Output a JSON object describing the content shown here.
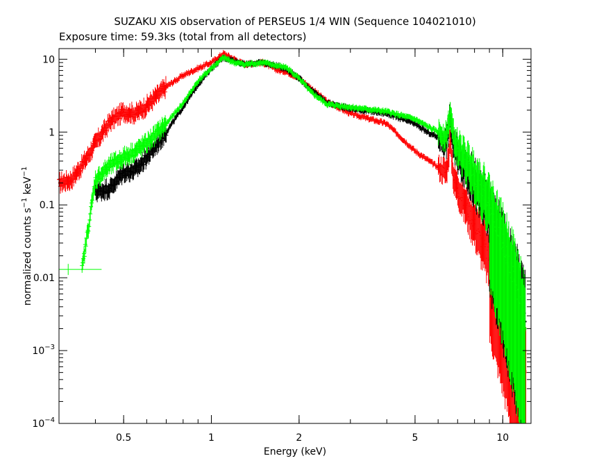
{
  "chart_data": {
    "type": "scatter",
    "title": "SUZAKU XIS observation of PERSEUS 1/4 WIN (Sequence 104021010)",
    "subtitle": "Exposure time: 59.3ks (total from all detectors)",
    "xlabel": "Energy (keV)",
    "ylabel": {
      "prefix": "normalized counts s",
      "exp1": "−1",
      "mid": " keV",
      "exp2": "−1"
    },
    "x_scale": "log",
    "y_scale": "log",
    "xlim": [
      0.3,
      12.5
    ],
    "ylim": [
      0.0001,
      14
    ],
    "x_ticks": [
      {
        "value": 0.5,
        "label": "0.5"
      },
      {
        "value": 1,
        "label": "1"
      },
      {
        "value": 2,
        "label": "2"
      },
      {
        "value": 5,
        "label": "5"
      },
      {
        "value": 10,
        "label": "10"
      }
    ],
    "y_ticks": [
      {
        "value": 10,
        "label": "10"
      },
      {
        "value": 1,
        "label": "1"
      },
      {
        "value": 0.1,
        "label": "0.1"
      },
      {
        "value": 0.01,
        "label": "0.01"
      },
      {
        "value": 0.001,
        "label": "10",
        "exp": "−3"
      },
      {
        "value": 0.0001,
        "label": "10",
        "exp": "−4"
      }
    ],
    "grid": false,
    "series": [
      {
        "color": "#ff0000",
        "x": [
          0.3,
          0.33,
          0.36,
          0.4,
          0.45,
          0.5,
          0.55,
          0.6,
          0.7,
          0.8,
          0.9,
          1.0,
          1.1,
          1.2,
          1.3,
          1.5,
          1.7,
          1.8,
          2.0,
          2.2,
          2.5,
          3.0,
          4.0,
          5.0,
          5.5,
          6.0,
          6.4,
          6.6,
          6.8,
          7.0,
          8.0,
          9.0,
          10.0,
          11.0,
          12.0
        ],
        "y": [
          0.2,
          0.22,
          0.35,
          0.7,
          1.4,
          1.9,
          1.8,
          2.3,
          4.2,
          6.0,
          7.5,
          9.0,
          12.0,
          10.0,
          8.5,
          9.0,
          7.0,
          6.8,
          5.5,
          4.0,
          2.6,
          1.8,
          1.3,
          0.55,
          0.42,
          0.33,
          0.28,
          0.75,
          0.22,
          0.17,
          0.055,
          0.018,
          0.006,
          0.002,
          0.0005
        ]
      },
      {
        "color": "#000000",
        "x": [
          0.4,
          0.45,
          0.5,
          0.55,
          0.6,
          0.7,
          0.8,
          0.9,
          1.0,
          1.1,
          1.2,
          1.3,
          1.5,
          1.7,
          1.8,
          2.0,
          2.2,
          2.5,
          3.0,
          4.0,
          5.0,
          5.5,
          6.0,
          6.4,
          6.6,
          6.8,
          7.0,
          8.0,
          9.0,
          10.0,
          11.0,
          12.0
        ],
        "y": [
          0.15,
          0.17,
          0.28,
          0.3,
          0.45,
          1.0,
          2.2,
          4.5,
          7.5,
          10.5,
          9.5,
          8.5,
          9.0,
          8.0,
          7.5,
          5.5,
          3.8,
          2.5,
          2.1,
          1.8,
          1.3,
          1.0,
          0.85,
          0.7,
          1.6,
          0.6,
          0.5,
          0.2,
          0.08,
          0.025,
          0.008,
          0.0025
        ]
      },
      {
        "color": "#00ff00",
        "x": [
          0.36,
          0.4,
          0.45,
          0.5,
          0.55,
          0.6,
          0.7,
          0.8,
          0.9,
          1.0,
          1.1,
          1.2,
          1.3,
          1.5,
          1.7,
          1.8,
          2.0,
          2.2,
          2.5,
          3.0,
          4.0,
          5.0,
          5.5,
          6.0,
          6.4,
          6.6,
          6.8,
          7.0,
          8.0,
          9.0,
          10.0,
          11.0,
          12.0
        ],
        "y": [
          0.013,
          0.22,
          0.35,
          0.45,
          0.55,
          0.7,
          1.3,
          2.5,
          5.0,
          7.5,
          10.5,
          9.0,
          8.5,
          9.0,
          8.0,
          7.8,
          5.5,
          3.5,
          2.4,
          2.2,
          1.9,
          1.5,
          1.2,
          1.0,
          0.85,
          1.8,
          0.75,
          0.6,
          0.25,
          0.1,
          0.03,
          0.009,
          0.002
        ]
      }
    ]
  }
}
